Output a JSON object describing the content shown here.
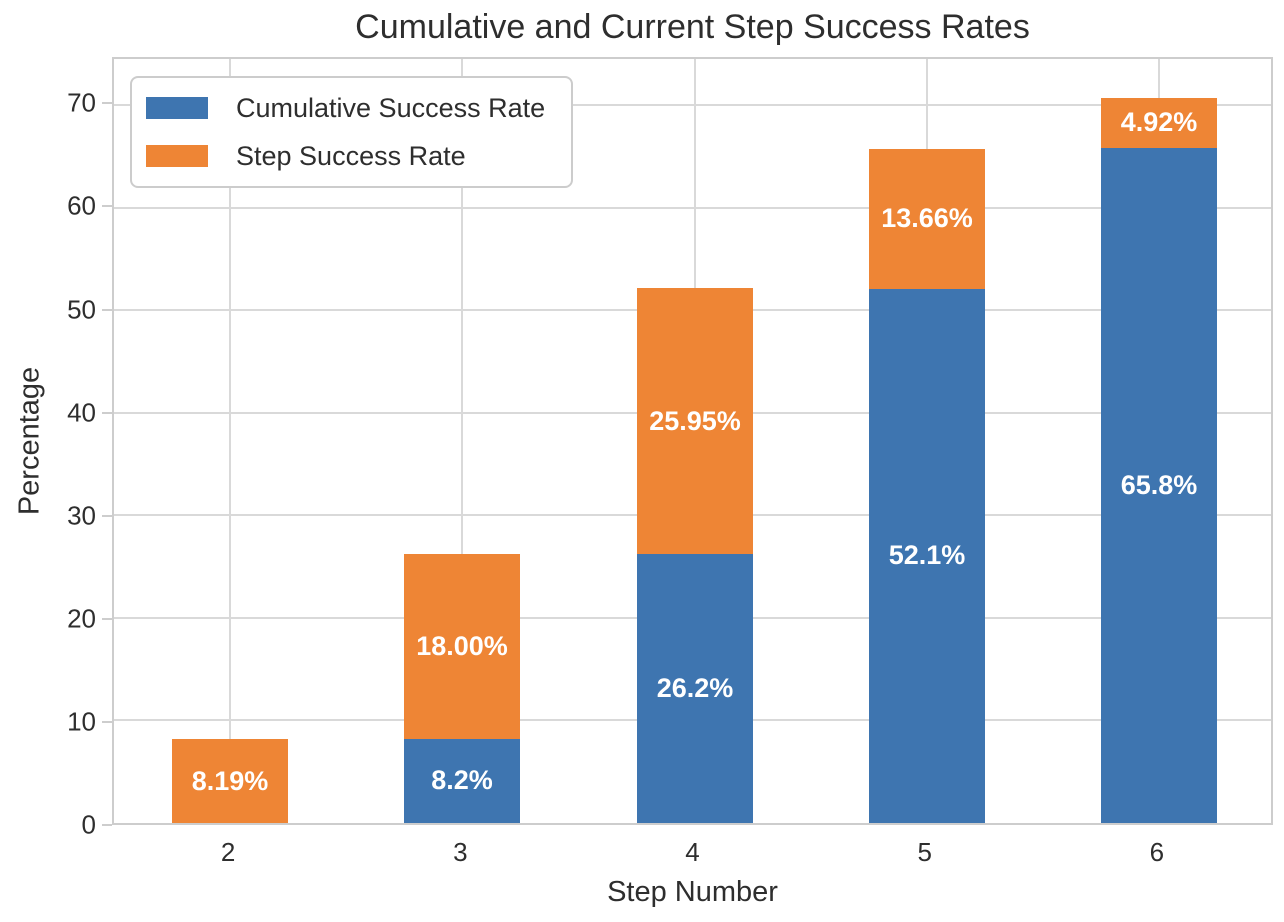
{
  "chart_data": {
    "type": "bar",
    "stacked": true,
    "title": "Cumulative and Current Step Success Rates",
    "xlabel": "Step Number",
    "ylabel": "Percentage",
    "categories": [
      "2",
      "3",
      "4",
      "5",
      "6"
    ],
    "series": [
      {
        "name": "Cumulative Success Rate",
        "color": "#3e75b0",
        "values": [
          0,
          8.2,
          26.2,
          52.1,
          65.8
        ],
        "bar_labels": [
          "",
          "8.2%",
          "26.2%",
          "52.1%",
          "65.8%"
        ]
      },
      {
        "name": "Step Success Rate",
        "color": "#ee8535",
        "values": [
          8.19,
          18.0,
          25.95,
          13.66,
          4.92
        ],
        "bar_labels": [
          "8.19%",
          "18.00%",
          "25.95%",
          "13.66%",
          "4.92%"
        ]
      }
    ],
    "ylim": [
      0,
      74.5
    ],
    "yticks": [
      0,
      10,
      20,
      30,
      40,
      50,
      60,
      70
    ],
    "grid": true,
    "legend_position": "upper left",
    "bar_label_color": "#ffffff",
    "text_color": "#2e2e2e",
    "grid_color": "#d9d9d9",
    "spine_color": "#cdcdcd"
  }
}
